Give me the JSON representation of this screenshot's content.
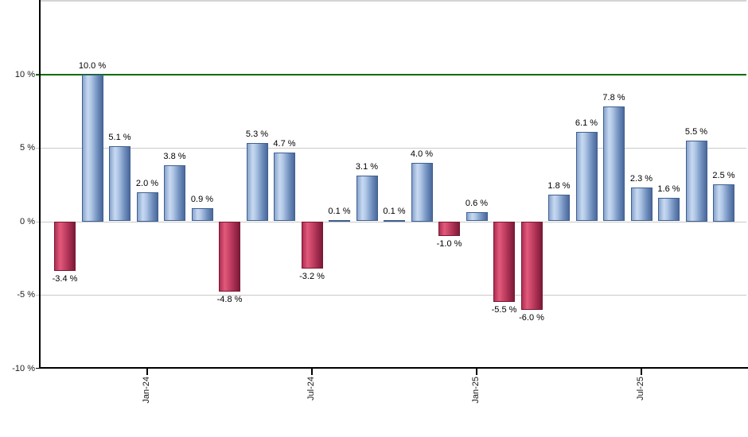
{
  "chart_data": {
    "type": "bar",
    "title": "",
    "xlabel": "",
    "ylabel": "",
    "values": [
      -3.4,
      10.0,
      5.1,
      2.0,
      3.8,
      0.9,
      -4.8,
      5.3,
      4.7,
      -3.2,
      0.1,
      3.1,
      0.1,
      4.0,
      -1.0,
      0.6,
      -5.5,
      -6.0,
      1.8,
      6.1,
      7.8,
      2.3,
      1.6,
      5.5,
      2.5
    ],
    "bar_labels": [
      "-3.4 %",
      "10.0 %",
      "5.1 %",
      "2.0 %",
      "3.8 %",
      "0.9 %",
      "-4.8 %",
      "5.3 %",
      "4.7 %",
      "-3.2 %",
      "0.1 %",
      "3.1 %",
      "0.1 %",
      "4.0 %",
      "-1.0 %",
      "0.6 %",
      "-5.5 %",
      "-6.0 %",
      "1.8 %",
      "6.1 %",
      "7.8 %",
      "2.3 %",
      "1.6 %",
      "5.5 %",
      "2.5 %"
    ],
    "y_ticks": [
      {
        "label": "10 %",
        "value": 10
      },
      {
        "label": "5 %",
        "value": 5
      },
      {
        "label": "0 %",
        "value": 0
      },
      {
        "label": "-5 %",
        "value": -5
      },
      {
        "label": "-10 %",
        "value": -10
      }
    ],
    "x_ticks": [
      {
        "label": "Jan-24",
        "bar_index": 3
      },
      {
        "label": "Jul-24",
        "bar_index": 9
      },
      {
        "label": "Jan-25",
        "bar_index": 15
      },
      {
        "label": "Jul-25",
        "bar_index": 21
      }
    ],
    "ylim": [
      -10,
      15
    ],
    "grid": true,
    "legend": false,
    "reference_line": {
      "value": 10,
      "color": "#006e00"
    },
    "colors": {
      "positive_bar_light": "#c8daf1",
      "positive_bar_mid": "#87a3cd",
      "positive_bar_dark": "#4a689b",
      "negative_bar_light": "#e25a7c",
      "negative_bar_mid": "#ae2f53",
      "negative_bar_dark": "#7c1b37",
      "reference_line": "#006e00",
      "gridline": "#c9c9c9",
      "axis": "#000000",
      "background": "#ffffff"
    }
  }
}
